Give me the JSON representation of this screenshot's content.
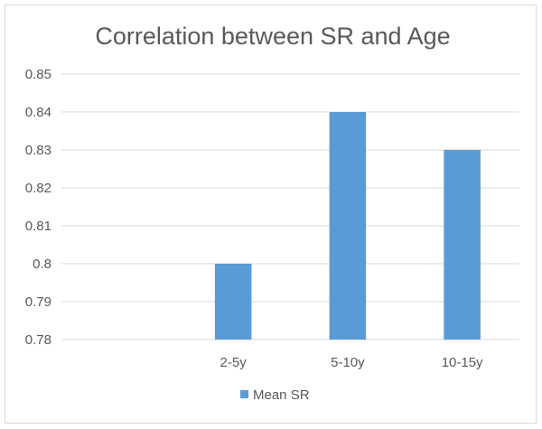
{
  "chart_data": {
    "type": "bar",
    "title": "Correlation between SR and Age",
    "categories": [
      "",
      "2-5y",
      "5-10y",
      "10-15y"
    ],
    "series": [
      {
        "name": "Mean SR",
        "values": [
          null,
          0.8,
          0.84,
          0.83
        ]
      }
    ],
    "yticks": [
      "0.78",
      "0.79",
      "0.8",
      "0.81",
      "0.82",
      "0.83",
      "0.84",
      "0.85"
    ],
    "ylim": [
      0.78,
      0.85
    ],
    "grid": true,
    "legend": "bottom",
    "colors": {
      "bar": "#5b9bd5",
      "grid": "#d9d9d9",
      "text": "#595959"
    }
  }
}
